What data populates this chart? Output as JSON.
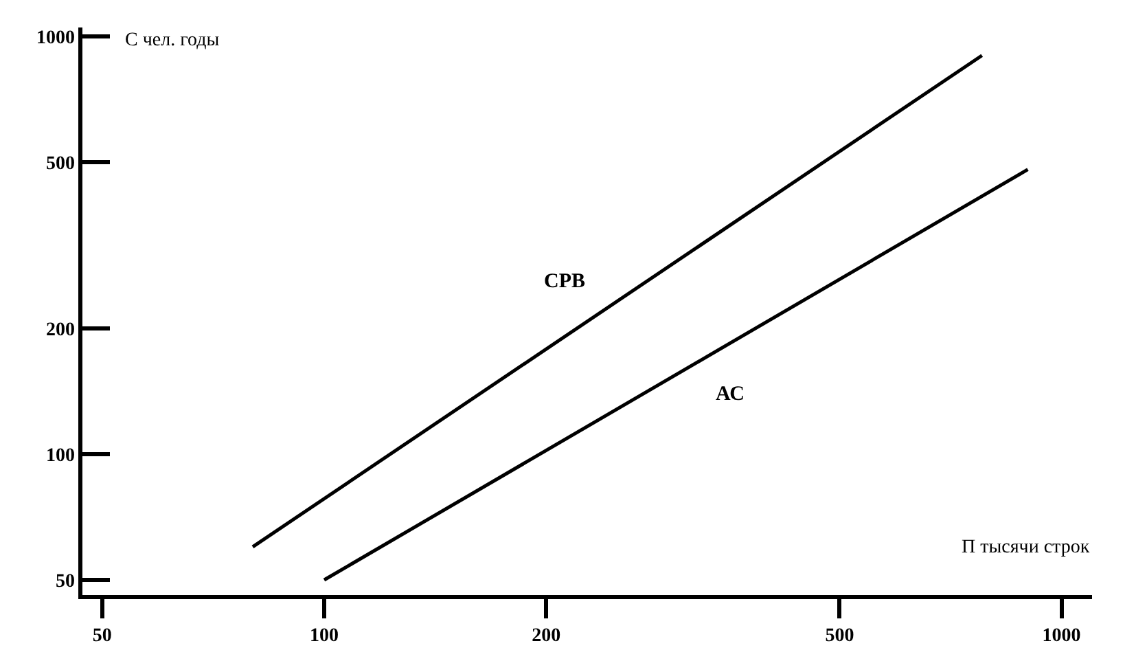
{
  "chart_data": {
    "type": "line",
    "xlabel": "П тысячи строк",
    "ylabel": "C чел. годы",
    "log": "xy",
    "xlim": [
      47,
      1100
    ],
    "ylim": [
      46,
      1050
    ],
    "xticks": [
      50,
      100,
      200,
      500,
      1000
    ],
    "yticks": [
      50,
      100,
      200,
      500,
      1000
    ],
    "grid": false,
    "marker": "none",
    "line_style": "solid",
    "series": [
      {
        "name": "СРВ",
        "color": "#000000",
        "x": [
          80,
          780
        ],
        "values": [
          60,
          900
        ]
      },
      {
        "name": "АС",
        "color": "#000000",
        "x": [
          100,
          900
        ],
        "values": [
          50,
          480
        ]
      }
    ]
  }
}
